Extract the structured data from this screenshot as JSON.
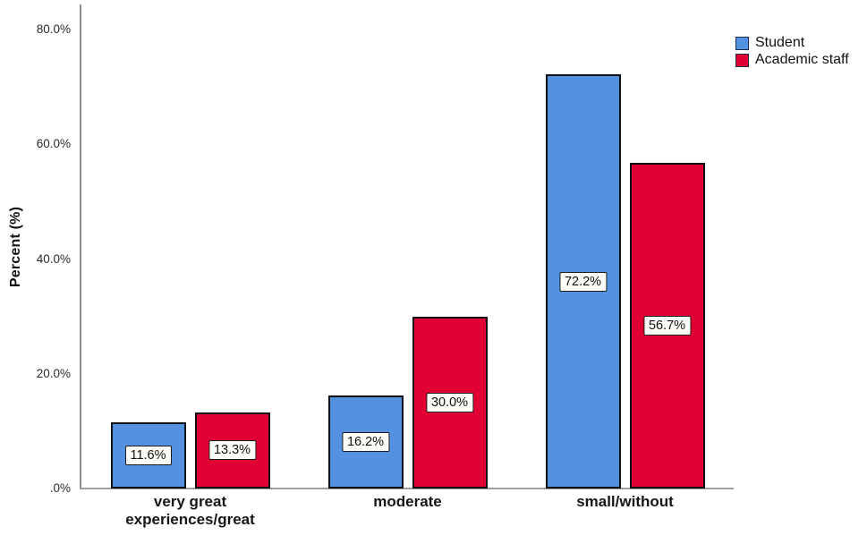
{
  "chart_data": {
    "type": "bar",
    "title": "",
    "xlabel": "",
    "ylabel": "Percent (%)",
    "categories": [
      "very great\nexperiences/great",
      "moderate",
      "small/without"
    ],
    "series": [
      {
        "name": "Student",
        "color": "#5591E1",
        "values": [
          11.6,
          16.2,
          72.2
        ],
        "labels": [
          "11.6%",
          "16.2%",
          "72.2%"
        ]
      },
      {
        "name": "Academic staff",
        "color": "#E00034",
        "values": [
          13.3,
          30.0,
          56.7
        ],
        "labels": [
          "13.3%",
          "30.0%",
          "56.7%"
        ]
      }
    ],
    "yticks": [
      {
        "value": 0,
        "label": ".0%"
      },
      {
        "value": 20,
        "label": "20.0%"
      },
      {
        "value": 40,
        "label": "40.0%"
      },
      {
        "value": 60,
        "label": "60.0%"
      },
      {
        "value": 80,
        "label": "80.0%"
      }
    ],
    "ylim": [
      0,
      84.4
    ],
    "grid": false,
    "legend_position": "top-right",
    "bar_label_style": "boxed"
  },
  "colors": {
    "axis": "#8f8f8f",
    "bar_border": "#101018",
    "label_box_bg": "#fdfcf6",
    "label_box_border": "#1c1c1c",
    "background": "#ffffff"
  }
}
